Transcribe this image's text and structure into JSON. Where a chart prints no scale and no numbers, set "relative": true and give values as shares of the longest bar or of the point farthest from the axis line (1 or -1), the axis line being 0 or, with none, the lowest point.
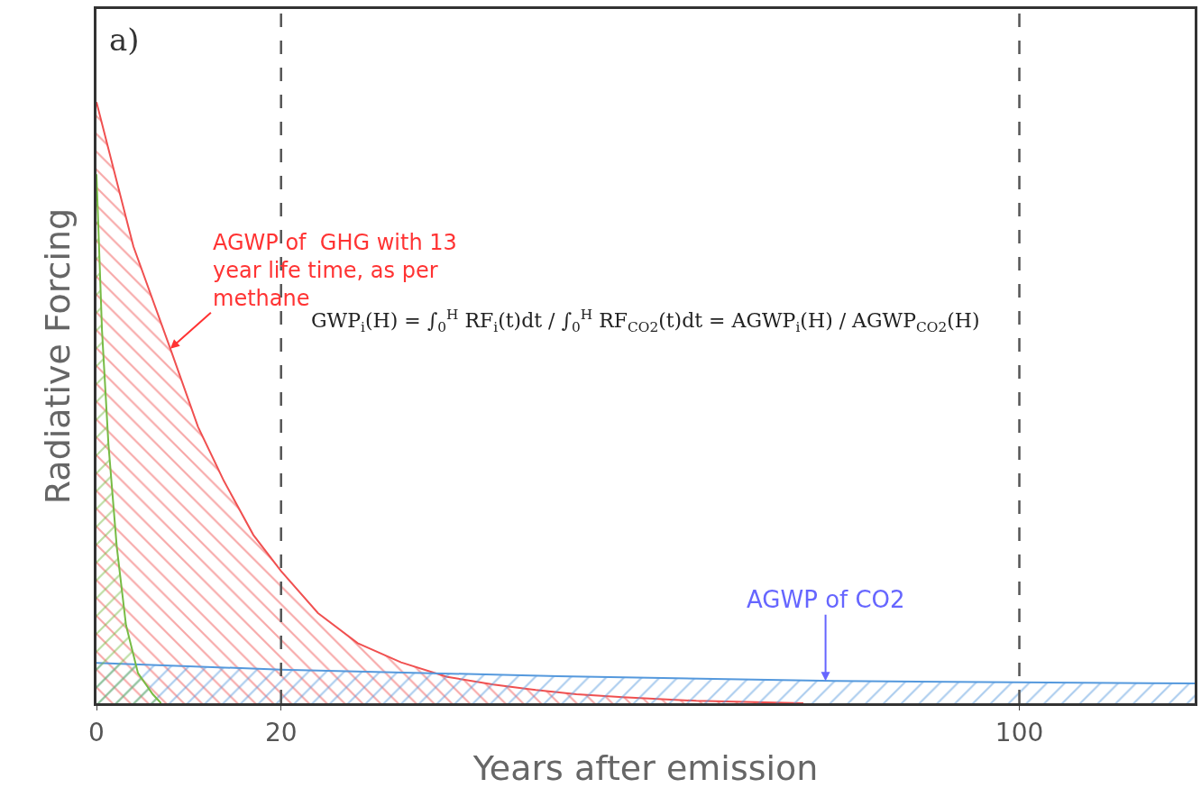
{
  "chart_data": {
    "type": "area",
    "relative": true,
    "xlabel": "Years after emission",
    "ylabel": "Radiative Forcing",
    "xlim": [
      0,
      119
    ],
    "xticks": [
      0,
      20,
      100
    ],
    "line_style": "solid",
    "marker": "none",
    "series": [
      {
        "color": "#f05050",
        "x": [
          0,
          4,
          8,
          11,
          13.8,
          17,
          20,
          24,
          28.3,
          33,
          38,
          43,
          47.6,
          52,
          57,
          65,
          76.6
        ],
        "values": [
          1.0,
          0.76,
          0.59,
          0.46,
          0.37,
          0.28,
          0.22,
          0.15,
          0.1,
          0.068,
          0.044,
          0.031,
          0.022,
          0.015,
          0.01,
          0.004,
          0
        ]
      },
      {
        "color": "#5599dd",
        "x": [
          0,
          20,
          50,
          80,
          119
        ],
        "values": [
          0.067,
          0.056,
          0.045,
          0.037,
          0.033
        ]
      },
      {
        "color": "#77bb44",
        "x": [
          0,
          0.6,
          1.3,
          2.2,
          3.2,
          4.5,
          6.1,
          7
        ],
        "values": [
          0.88,
          0.62,
          0.43,
          0.26,
          0.13,
          0.05,
          0.015,
          0
        ]
      }
    ],
    "ref_lines": [
      {
        "axis": "x",
        "value": 20,
        "color": "#555555",
        "line_style": "dashed"
      },
      {
        "axis": "x",
        "value": 100,
        "color": "#555555",
        "line_style": "dashed"
      }
    ],
    "annotations": [
      "a)",
      {
        "text": "AGWP of  GHG with 13 year life time, as per methane",
        "x": 8,
        "y": 0.59
      },
      {
        "text": "AGWP of CO2",
        "x": 79,
        "y": 0.037
      },
      "GWP$_{i}$(H) = ∫$_{0}$$^{H}$ RF$_{i}$(t)dt / ∫$_{0}$$^{H}$ RF$_{CO2}$(t)dt = AGWP$_{i}$(H) / AGWP$_{CO2}$(H)"
    ]
  }
}
